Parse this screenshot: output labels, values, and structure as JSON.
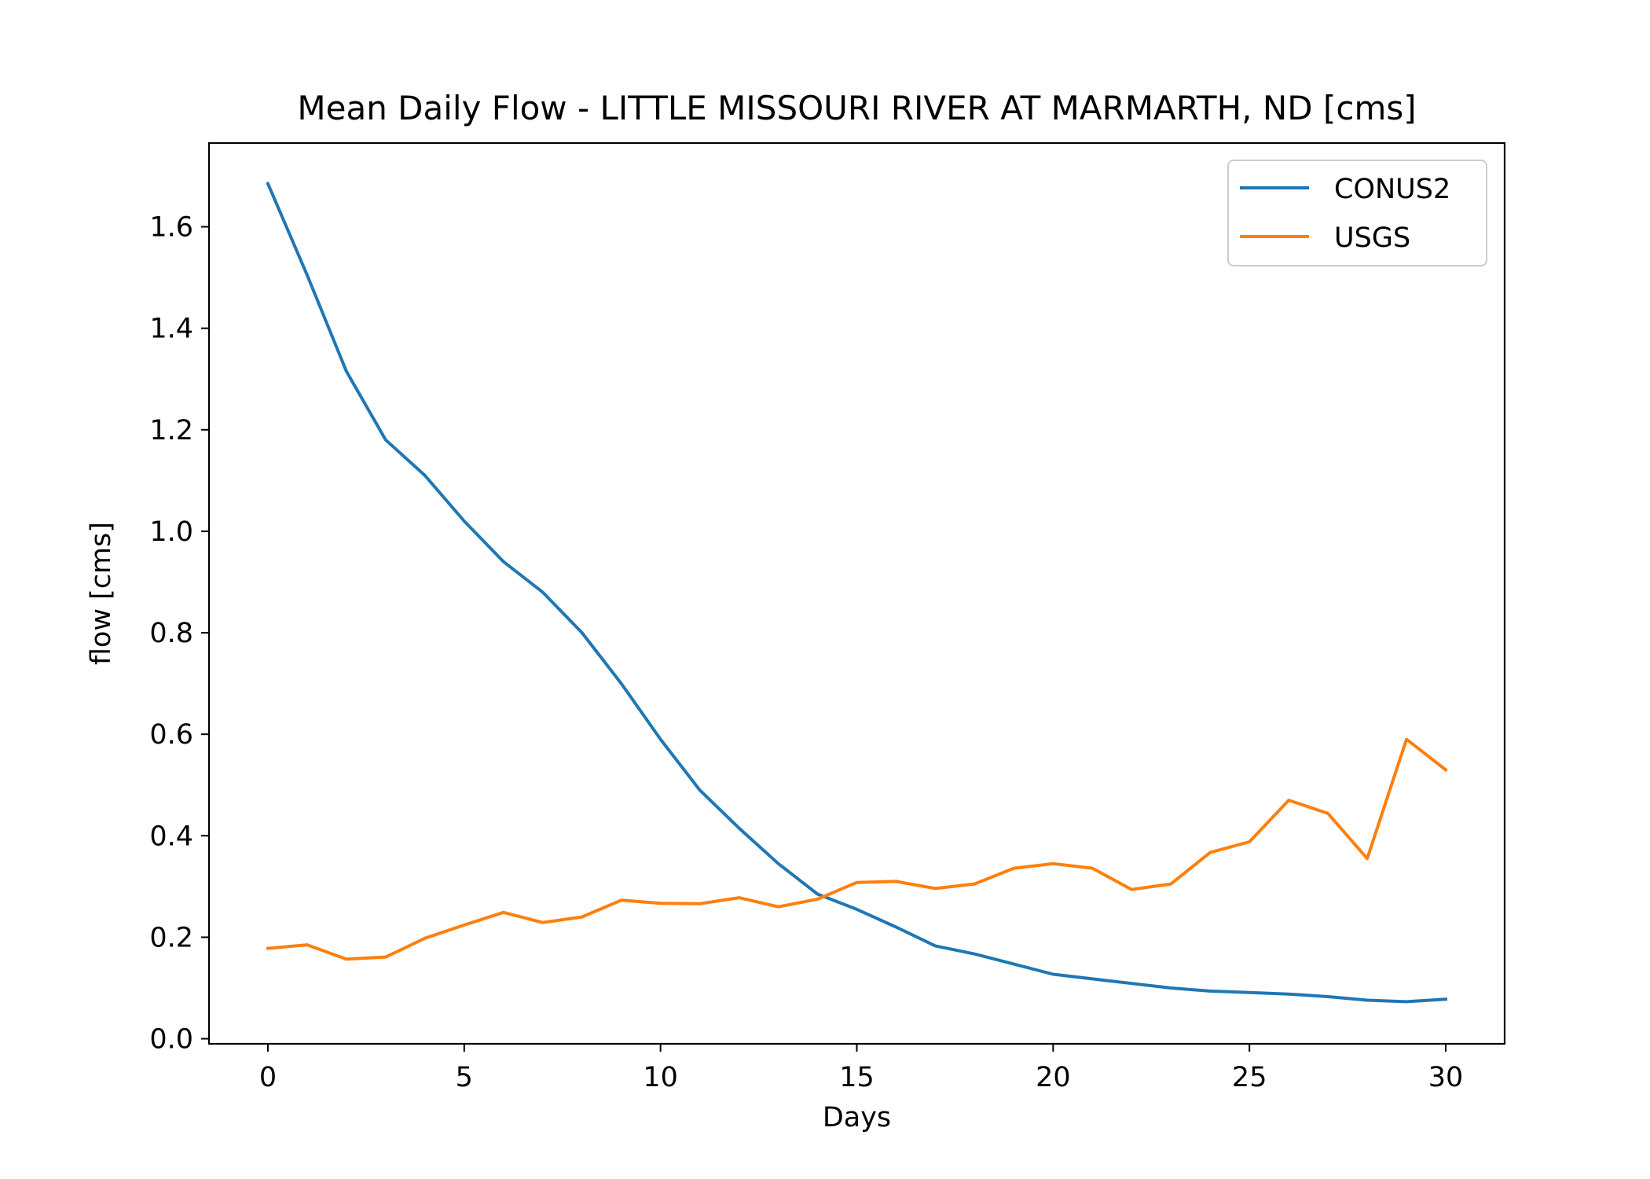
{
  "chart_data": {
    "type": "line",
    "title": "Mean Daily Flow - LITTLE MISSOURI RIVER AT MARMARTH, ND [cms]",
    "xlabel": "Days",
    "ylabel": "flow [cms]",
    "xlim": [
      -1.5,
      31.5
    ],
    "ylim": [
      -0.01,
      1.765
    ],
    "xticks": [
      0,
      5,
      10,
      15,
      20,
      25,
      30
    ],
    "yticks": [
      0.0,
      0.2,
      0.4,
      0.6,
      0.8,
      1.0,
      1.2,
      1.4,
      1.6
    ],
    "grid": false,
    "legend_position": "top-right",
    "x": [
      0,
      1,
      2,
      3,
      4,
      5,
      6,
      7,
      8,
      9,
      10,
      11,
      12,
      13,
      14,
      15,
      16,
      17,
      18,
      19,
      20,
      21,
      22,
      23,
      24,
      25,
      26,
      27,
      28,
      29,
      30
    ],
    "series": [
      {
        "name": "CONUS2",
        "color": "#1f77b4",
        "values": [
          1.685,
          1.505,
          1.315,
          1.18,
          1.11,
          1.02,
          0.94,
          0.88,
          0.8,
          0.7,
          0.59,
          0.49,
          0.415,
          0.345,
          0.285,
          0.255,
          0.22,
          0.183,
          0.167,
          0.147,
          0.127,
          0.118,
          0.109,
          0.1,
          0.094,
          0.091,
          0.088,
          0.083,
          0.076,
          0.073,
          0.078
        ]
      },
      {
        "name": "USGS",
        "color": "#ff7f0e",
        "values": [
          0.178,
          0.185,
          0.157,
          0.161,
          0.198,
          0.224,
          0.249,
          0.229,
          0.24,
          0.273,
          0.267,
          0.266,
          0.278,
          0.26,
          0.275,
          0.308,
          0.31,
          0.296,
          0.305,
          0.336,
          0.345,
          0.336,
          0.294,
          0.305,
          0.367,
          0.388,
          0.47,
          0.444,
          0.355,
          0.59,
          0.53
        ]
      }
    ]
  }
}
